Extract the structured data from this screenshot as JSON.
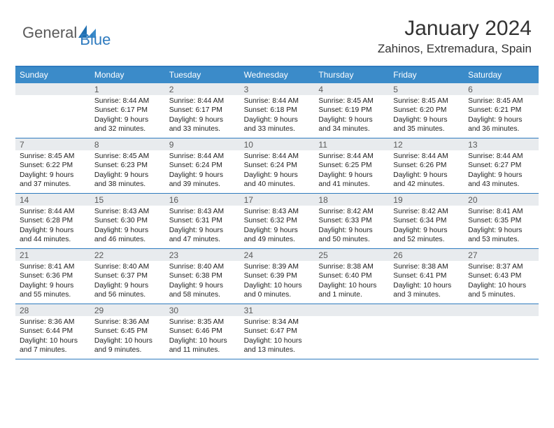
{
  "brand": {
    "part1": "General",
    "part2": "Blue"
  },
  "title": "January 2024",
  "location": "Zahinos, Extremadura, Spain",
  "colors": {
    "headerBlue": "#3b8bc9",
    "ruleBlue": "#2f7bbf",
    "dayBg": "#e8ebee",
    "text": "#222222",
    "grayText": "#5a5a5a"
  },
  "dayNames": [
    "Sunday",
    "Monday",
    "Tuesday",
    "Wednesday",
    "Thursday",
    "Friday",
    "Saturday"
  ],
  "weeks": [
    [
      {
        "n": "",
        "lines": []
      },
      {
        "n": "1",
        "lines": [
          "Sunrise: 8:44 AM",
          "Sunset: 6:17 PM",
          "Daylight: 9 hours",
          "and 32 minutes."
        ]
      },
      {
        "n": "2",
        "lines": [
          "Sunrise: 8:44 AM",
          "Sunset: 6:17 PM",
          "Daylight: 9 hours",
          "and 33 minutes."
        ]
      },
      {
        "n": "3",
        "lines": [
          "Sunrise: 8:44 AM",
          "Sunset: 6:18 PM",
          "Daylight: 9 hours",
          "and 33 minutes."
        ]
      },
      {
        "n": "4",
        "lines": [
          "Sunrise: 8:45 AM",
          "Sunset: 6:19 PM",
          "Daylight: 9 hours",
          "and 34 minutes."
        ]
      },
      {
        "n": "5",
        "lines": [
          "Sunrise: 8:45 AM",
          "Sunset: 6:20 PM",
          "Daylight: 9 hours",
          "and 35 minutes."
        ]
      },
      {
        "n": "6",
        "lines": [
          "Sunrise: 8:45 AM",
          "Sunset: 6:21 PM",
          "Daylight: 9 hours",
          "and 36 minutes."
        ]
      }
    ],
    [
      {
        "n": "7",
        "lines": [
          "Sunrise: 8:45 AM",
          "Sunset: 6:22 PM",
          "Daylight: 9 hours",
          "and 37 minutes."
        ]
      },
      {
        "n": "8",
        "lines": [
          "Sunrise: 8:45 AM",
          "Sunset: 6:23 PM",
          "Daylight: 9 hours",
          "and 38 minutes."
        ]
      },
      {
        "n": "9",
        "lines": [
          "Sunrise: 8:44 AM",
          "Sunset: 6:24 PM",
          "Daylight: 9 hours",
          "and 39 minutes."
        ]
      },
      {
        "n": "10",
        "lines": [
          "Sunrise: 8:44 AM",
          "Sunset: 6:24 PM",
          "Daylight: 9 hours",
          "and 40 minutes."
        ]
      },
      {
        "n": "11",
        "lines": [
          "Sunrise: 8:44 AM",
          "Sunset: 6:25 PM",
          "Daylight: 9 hours",
          "and 41 minutes."
        ]
      },
      {
        "n": "12",
        "lines": [
          "Sunrise: 8:44 AM",
          "Sunset: 6:26 PM",
          "Daylight: 9 hours",
          "and 42 minutes."
        ]
      },
      {
        "n": "13",
        "lines": [
          "Sunrise: 8:44 AM",
          "Sunset: 6:27 PM",
          "Daylight: 9 hours",
          "and 43 minutes."
        ]
      }
    ],
    [
      {
        "n": "14",
        "lines": [
          "Sunrise: 8:44 AM",
          "Sunset: 6:28 PM",
          "Daylight: 9 hours",
          "and 44 minutes."
        ]
      },
      {
        "n": "15",
        "lines": [
          "Sunrise: 8:43 AM",
          "Sunset: 6:30 PM",
          "Daylight: 9 hours",
          "and 46 minutes."
        ]
      },
      {
        "n": "16",
        "lines": [
          "Sunrise: 8:43 AM",
          "Sunset: 6:31 PM",
          "Daylight: 9 hours",
          "and 47 minutes."
        ]
      },
      {
        "n": "17",
        "lines": [
          "Sunrise: 8:43 AM",
          "Sunset: 6:32 PM",
          "Daylight: 9 hours",
          "and 49 minutes."
        ]
      },
      {
        "n": "18",
        "lines": [
          "Sunrise: 8:42 AM",
          "Sunset: 6:33 PM",
          "Daylight: 9 hours",
          "and 50 minutes."
        ]
      },
      {
        "n": "19",
        "lines": [
          "Sunrise: 8:42 AM",
          "Sunset: 6:34 PM",
          "Daylight: 9 hours",
          "and 52 minutes."
        ]
      },
      {
        "n": "20",
        "lines": [
          "Sunrise: 8:41 AM",
          "Sunset: 6:35 PM",
          "Daylight: 9 hours",
          "and 53 minutes."
        ]
      }
    ],
    [
      {
        "n": "21",
        "lines": [
          "Sunrise: 8:41 AM",
          "Sunset: 6:36 PM",
          "Daylight: 9 hours",
          "and 55 minutes."
        ]
      },
      {
        "n": "22",
        "lines": [
          "Sunrise: 8:40 AM",
          "Sunset: 6:37 PM",
          "Daylight: 9 hours",
          "and 56 minutes."
        ]
      },
      {
        "n": "23",
        "lines": [
          "Sunrise: 8:40 AM",
          "Sunset: 6:38 PM",
          "Daylight: 9 hours",
          "and 58 minutes."
        ]
      },
      {
        "n": "24",
        "lines": [
          "Sunrise: 8:39 AM",
          "Sunset: 6:39 PM",
          "Daylight: 10 hours",
          "and 0 minutes."
        ]
      },
      {
        "n": "25",
        "lines": [
          "Sunrise: 8:38 AM",
          "Sunset: 6:40 PM",
          "Daylight: 10 hours",
          "and 1 minute."
        ]
      },
      {
        "n": "26",
        "lines": [
          "Sunrise: 8:38 AM",
          "Sunset: 6:41 PM",
          "Daylight: 10 hours",
          "and 3 minutes."
        ]
      },
      {
        "n": "27",
        "lines": [
          "Sunrise: 8:37 AM",
          "Sunset: 6:43 PM",
          "Daylight: 10 hours",
          "and 5 minutes."
        ]
      }
    ],
    [
      {
        "n": "28",
        "lines": [
          "Sunrise: 8:36 AM",
          "Sunset: 6:44 PM",
          "Daylight: 10 hours",
          "and 7 minutes."
        ]
      },
      {
        "n": "29",
        "lines": [
          "Sunrise: 8:36 AM",
          "Sunset: 6:45 PM",
          "Daylight: 10 hours",
          "and 9 minutes."
        ]
      },
      {
        "n": "30",
        "lines": [
          "Sunrise: 8:35 AM",
          "Sunset: 6:46 PM",
          "Daylight: 10 hours",
          "and 11 minutes."
        ]
      },
      {
        "n": "31",
        "lines": [
          "Sunrise: 8:34 AM",
          "Sunset: 6:47 PM",
          "Daylight: 10 hours",
          "and 13 minutes."
        ]
      },
      {
        "n": "",
        "lines": []
      },
      {
        "n": "",
        "lines": []
      },
      {
        "n": "",
        "lines": []
      }
    ]
  ]
}
